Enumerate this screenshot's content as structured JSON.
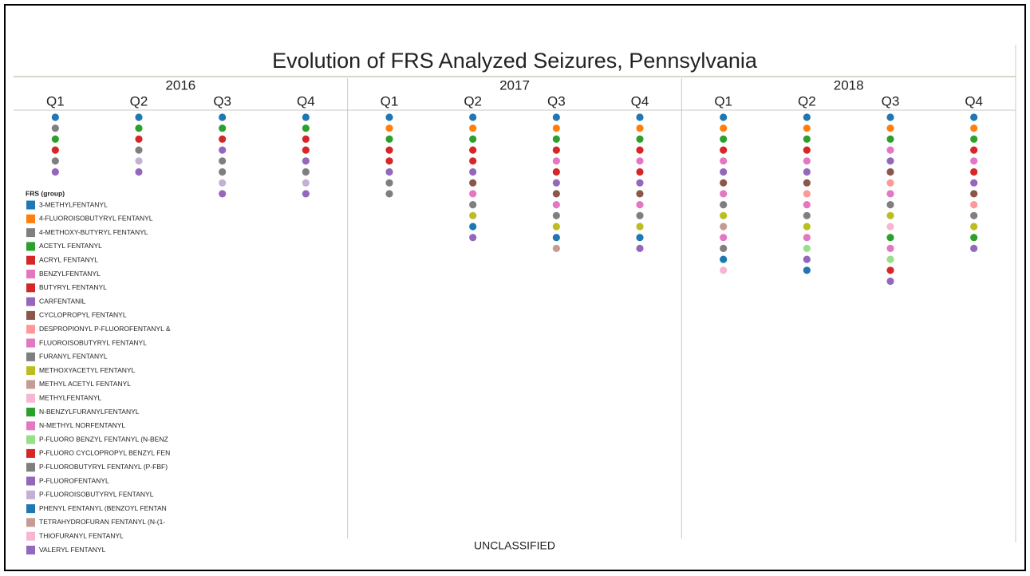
{
  "chart_data": {
    "type": "dot-strip",
    "title": "Evolution of FRS Analyzed Seizures, Pennsylvania",
    "footer_label": "UNCLASSIFIED",
    "legend_title": "FRS (group)",
    "legend": [
      {
        "name": "3-METHYLFENTANYL",
        "color": "#1f77b4"
      },
      {
        "name": "4-FLUOROISOBUTYRYL FENTANYL",
        "color": "#ff7f0e"
      },
      {
        "name": "4-METHOXY-BUTYRYL FENTANYL",
        "color": "#7f7f7f"
      },
      {
        "name": "ACETYL FENTANYL",
        "color": "#2ca02c"
      },
      {
        "name": "ACRYL FENTANYL",
        "color": "#d62728"
      },
      {
        "name": "BENZYLFENTANYL",
        "color": "#e377c2"
      },
      {
        "name": "BUTYRYL FENTANYL",
        "color": "#d62728"
      },
      {
        "name": "CARFENTANIL",
        "color": "#9467bd"
      },
      {
        "name": "CYCLOPROPYL FENTANYL",
        "color": "#8c564b"
      },
      {
        "name": "DESPROPIONYL P-FLUOROFENTANYL &",
        "color": "#ff9896"
      },
      {
        "name": "FLUOROISOBUTYRYL FENTANYL",
        "color": "#e377c2"
      },
      {
        "name": "FURANYL FENTANYL",
        "color": "#7f7f7f"
      },
      {
        "name": "METHOXYACETYL FENTANYL",
        "color": "#bcbd22"
      },
      {
        "name": "METHYL ACETYL FENTANYL",
        "color": "#c49c94"
      },
      {
        "name": "METHYLFENTANYL",
        "color": "#f7b6d2"
      },
      {
        "name": "N-BENZYLFURANYLFENTANYL",
        "color": "#2ca02c"
      },
      {
        "name": "N-METHYL NORFENTANYL",
        "color": "#e377c2"
      },
      {
        "name": "P-FLUORO BENZYL FENTANYL (N-BENZ",
        "color": "#98df8a"
      },
      {
        "name": "P-FLUORO CYCLOPROPYL BENZYL FEN",
        "color": "#d62728"
      },
      {
        "name": "P-FLUOROBUTYRYL FENTANYL (P-FBF)",
        "color": "#7f7f7f"
      },
      {
        "name": "P-FLUOROFENTANYL",
        "color": "#9467bd"
      },
      {
        "name": "P-FLUOROISOBUTYRYL FENTANYL",
        "color": "#c5b0d5"
      },
      {
        "name": "PHENYL FENTANYL (BENZOYL FENTAN",
        "color": "#1f77b4"
      },
      {
        "name": "TETRAHYDROFURAN FENTANYL (N-(1-",
        "color": "#c49c94"
      },
      {
        "name": "THIOFURANYL FENTANYL",
        "color": "#f7b6d2"
      },
      {
        "name": "VALERYL FENTANYL",
        "color": "#9467bd"
      }
    ],
    "years": [
      {
        "year": "2016",
        "quarters": [
          {
            "label": "Q1",
            "dots": [
              "#1f77b4",
              "#7f7f7f",
              "#2ca02c",
              "#d62728",
              "#7f7f7f",
              "#9467bd"
            ]
          },
          {
            "label": "Q2",
            "dots": [
              "#1f77b4",
              "#2ca02c",
              "#d62728",
              "#7f7f7f",
              "#c5b0d5",
              "#9467bd"
            ]
          },
          {
            "label": "Q3",
            "dots": [
              "#1f77b4",
              "#2ca02c",
              "#d62728",
              "#9467bd",
              "#7f7f7f",
              "#7f7f7f",
              "#c5b0d5",
              "#9467bd"
            ]
          },
          {
            "label": "Q4",
            "dots": [
              "#1f77b4",
              "#2ca02c",
              "#d62728",
              "#d62728",
              "#9467bd",
              "#7f7f7f",
              "#c5b0d5",
              "#9467bd"
            ]
          }
        ]
      },
      {
        "year": "2017",
        "quarters": [
          {
            "label": "Q1",
            "dots": [
              "#1f77b4",
              "#ff7f0e",
              "#2ca02c",
              "#d62728",
              "#d62728",
              "#9467bd",
              "#7f7f7f",
              "#7f7f7f"
            ]
          },
          {
            "label": "Q2",
            "dots": [
              "#1f77b4",
              "#ff7f0e",
              "#2ca02c",
              "#d62728",
              "#d62728",
              "#9467bd",
              "#8c564b",
              "#e377c2",
              "#7f7f7f",
              "#bcbd22",
              "#1f77b4",
              "#9467bd"
            ]
          },
          {
            "label": "Q3",
            "dots": [
              "#1f77b4",
              "#ff7f0e",
              "#2ca02c",
              "#d62728",
              "#e377c2",
              "#d62728",
              "#9467bd",
              "#8c564b",
              "#e377c2",
              "#7f7f7f",
              "#bcbd22",
              "#1f77b4",
              "#c49c94"
            ]
          },
          {
            "label": "Q4",
            "dots": [
              "#1f77b4",
              "#ff7f0e",
              "#2ca02c",
              "#d62728",
              "#e377c2",
              "#d62728",
              "#9467bd",
              "#8c564b",
              "#e377c2",
              "#7f7f7f",
              "#bcbd22",
              "#1f77b4",
              "#9467bd"
            ]
          }
        ]
      },
      {
        "year": "2018",
        "quarters": [
          {
            "label": "Q1",
            "dots": [
              "#1f77b4",
              "#ff7f0e",
              "#2ca02c",
              "#d62728",
              "#e377c2",
              "#9467bd",
              "#8c564b",
              "#e377c2",
              "#7f7f7f",
              "#bcbd22",
              "#c49c94",
              "#e377c2",
              "#7f7f7f",
              "#1f77b4",
              "#f7b6d2"
            ]
          },
          {
            "label": "Q2",
            "dots": [
              "#1f77b4",
              "#ff7f0e",
              "#2ca02c",
              "#d62728",
              "#e377c2",
              "#9467bd",
              "#8c564b",
              "#ff9896",
              "#e377c2",
              "#7f7f7f",
              "#bcbd22",
              "#e377c2",
              "#98df8a",
              "#9467bd",
              "#1f77b4"
            ]
          },
          {
            "label": "Q3",
            "dots": [
              "#1f77b4",
              "#ff7f0e",
              "#2ca02c",
              "#e377c2",
              "#9467bd",
              "#8c564b",
              "#ff9896",
              "#e377c2",
              "#7f7f7f",
              "#bcbd22",
              "#f7b6d2",
              "#2ca02c",
              "#e377c2",
              "#98df8a",
              "#d62728",
              "#9467bd"
            ]
          },
          {
            "label": "Q4",
            "dots": [
              "#1f77b4",
              "#ff7f0e",
              "#2ca02c",
              "#d62728",
              "#e377c2",
              "#d62728",
              "#9467bd",
              "#8c564b",
              "#ff9896",
              "#7f7f7f",
              "#bcbd22",
              "#2ca02c",
              "#9467bd"
            ]
          }
        ]
      }
    ]
  }
}
